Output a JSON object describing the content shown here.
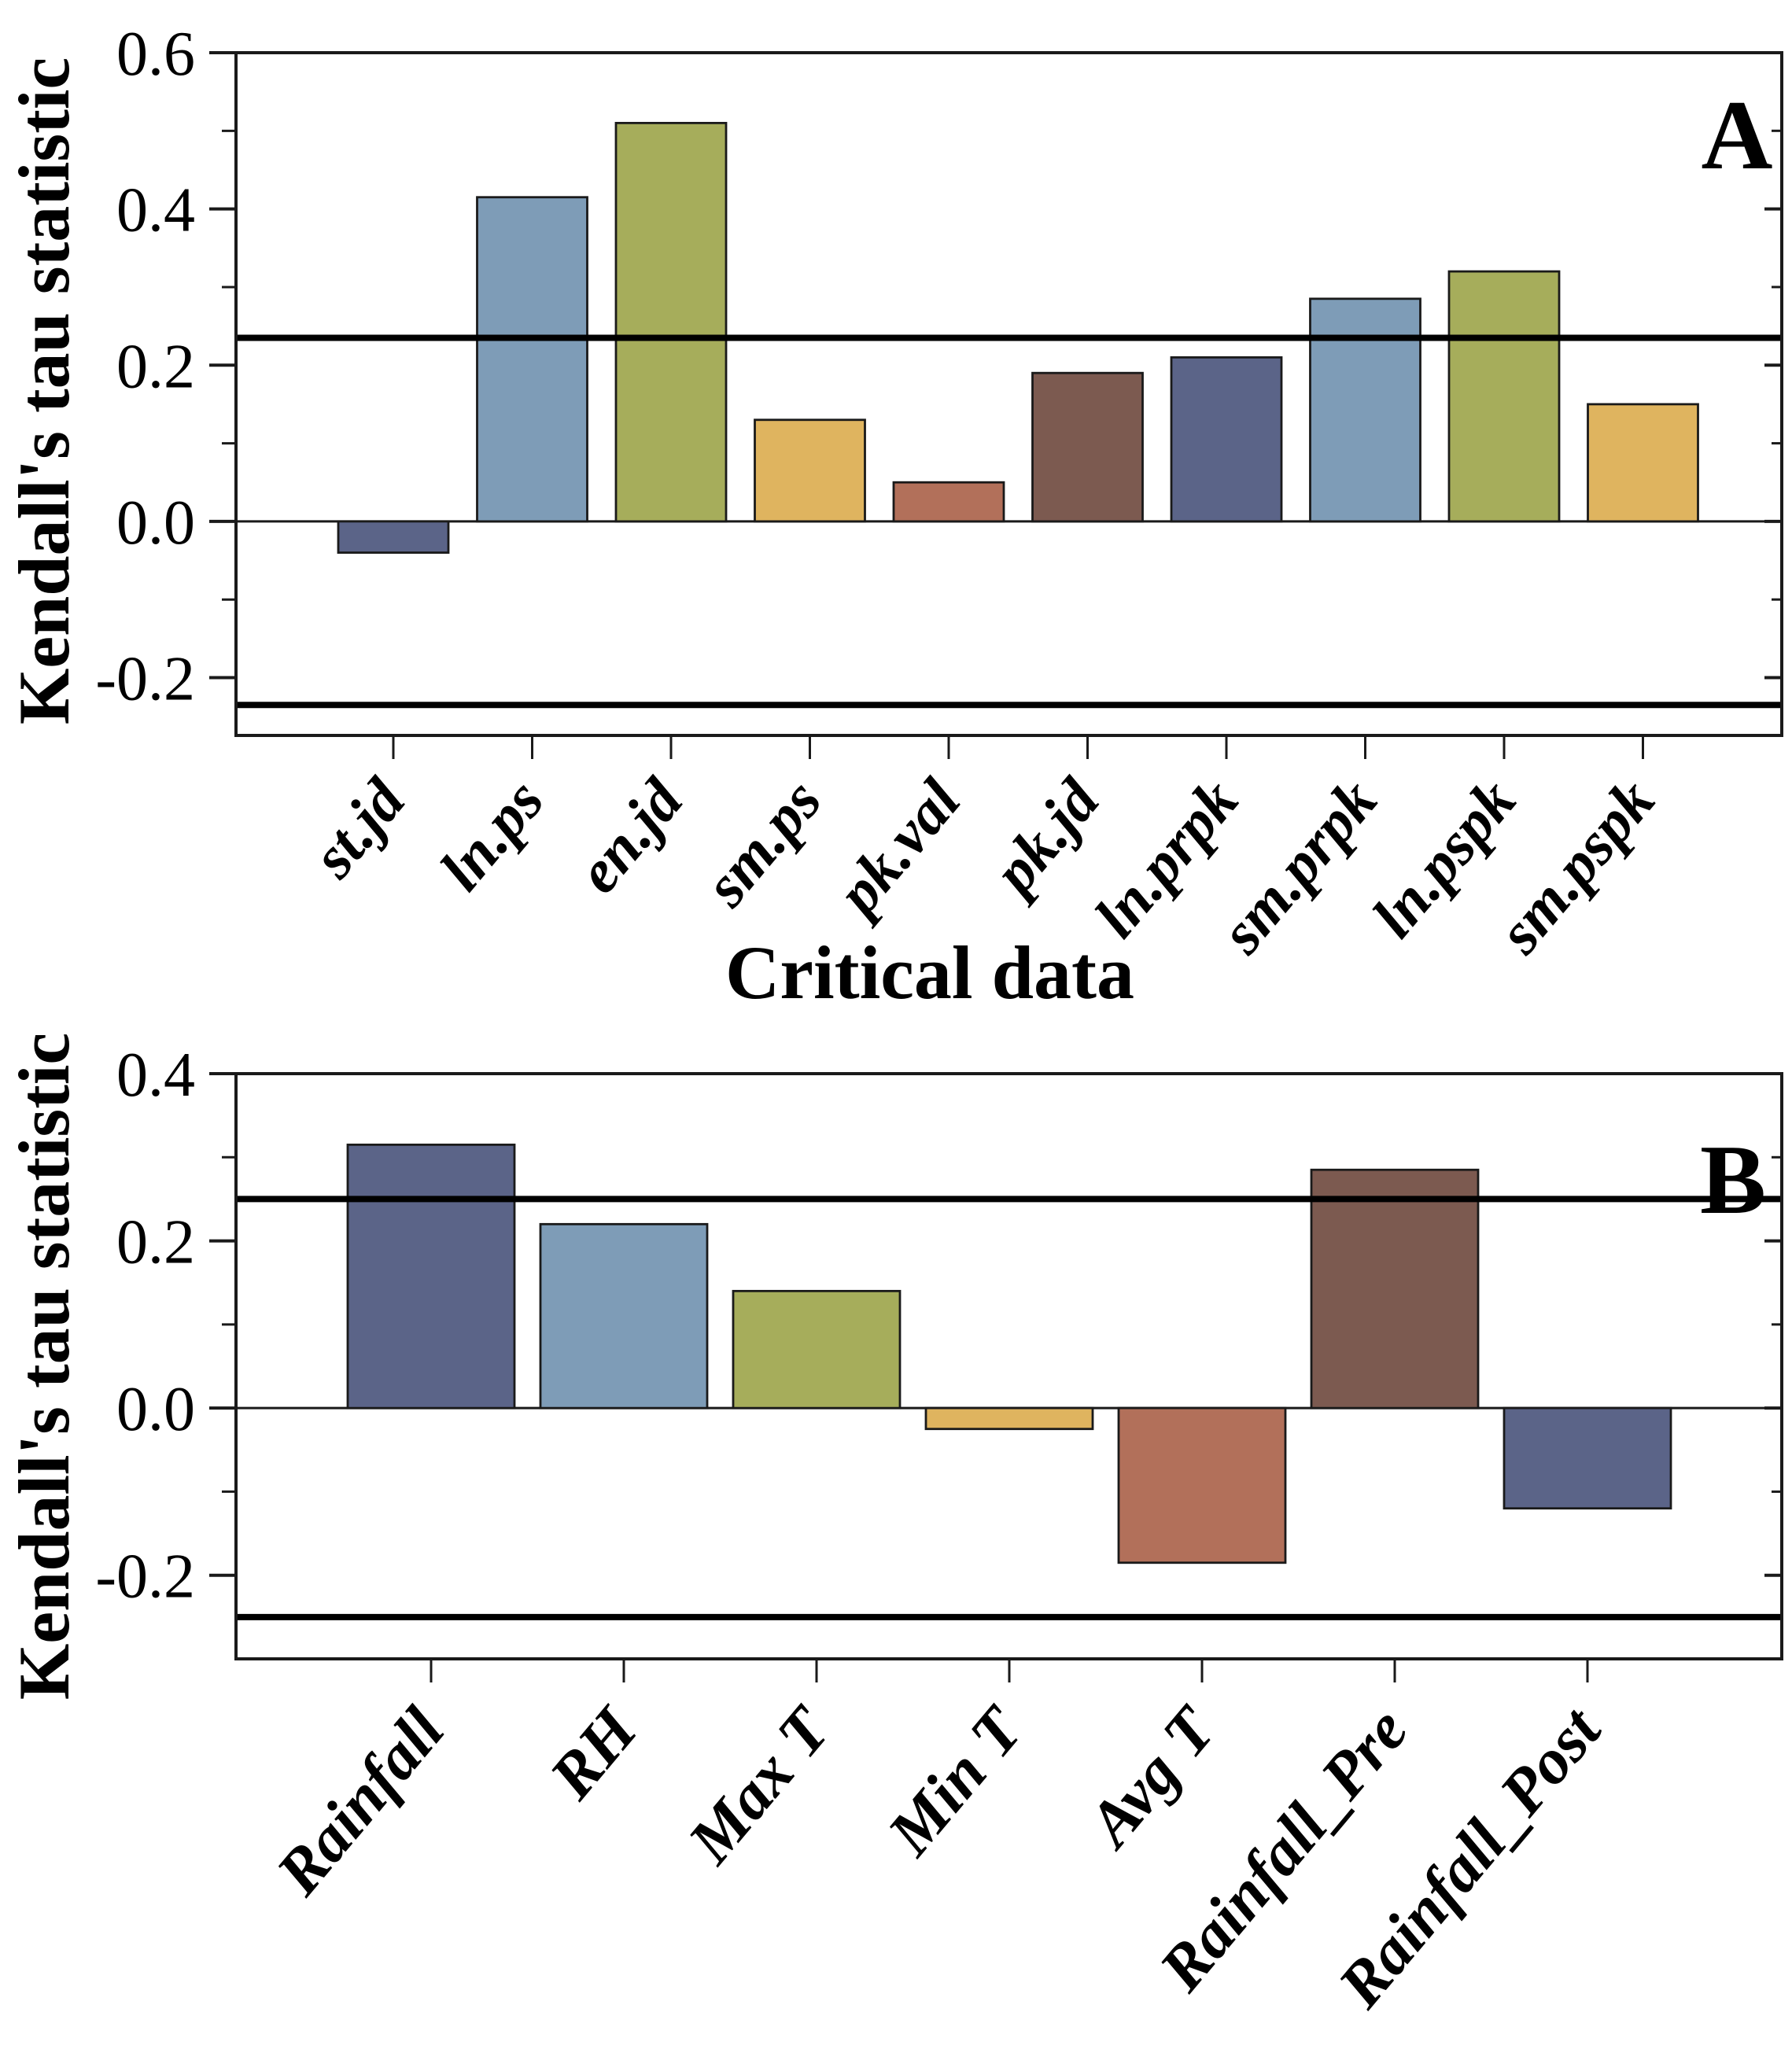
{
  "figure": {
    "background": "#ffffff",
    "title": "",
    "panel_a_letter": "A",
    "panel_b_letter": "B",
    "y_axis_title": "Kendall's tau statistic",
    "x_axis_title_a": "Critical data"
  },
  "colors": {
    "slate": "#5b6488",
    "lightblue": "#7e9cb7",
    "olive": "#a6ad5b",
    "gold": "#dfb45f",
    "salmon": "#b2705a",
    "brown": "#7c5a50",
    "axis": "#1a1a1a",
    "ref_line": "#000000",
    "text": "#000000"
  },
  "chart_data": [
    {
      "type": "bar",
      "panel": "A",
      "title": "",
      "ylabel": "Kendall's tau statistic",
      "xlabel": "Critical data",
      "categories": [
        "st.jd",
        "ln.ps",
        "en.jd",
        "sm.ps",
        "pk.val",
        "pk.jd",
        "ln.prpk",
        "sm.prpk",
        "ln.pspk",
        "sm.pspk"
      ],
      "values": [
        -0.04,
        0.415,
        0.51,
        0.13,
        0.05,
        0.19,
        0.21,
        0.285,
        0.32,
        0.15
      ],
      "bar_colors": [
        "slate",
        "lightblue",
        "olive",
        "gold",
        "salmon",
        "brown",
        "slate",
        "lightblue",
        "olive",
        "gold"
      ],
      "ylim": [
        -0.274,
        0.6
      ],
      "ytick_values": [
        0.6,
        0.4,
        0.2,
        0.0,
        -0.2
      ],
      "ytick_labels": [
        "0.6",
        "0.4",
        "0.2",
        "0.0",
        "-0.2"
      ],
      "minor_ticks": [
        0.5,
        0.3,
        0.1,
        -0.1
      ],
      "ref_lines": [
        0.235,
        -0.235
      ],
      "grid": false,
      "legend": "none"
    },
    {
      "type": "bar",
      "panel": "B",
      "title": "",
      "ylabel": "Kendall's tau statistic",
      "xlabel": "",
      "categories": [
        "Rainfall",
        "RH",
        "Max T",
        "Min T",
        "Avg T",
        "Rainfall_Pre",
        "Rainfall_Post"
      ],
      "values": [
        0.315,
        0.22,
        0.14,
        -0.025,
        -0.185,
        0.285,
        -0.12
      ],
      "bar_colors": [
        "slate",
        "lightblue",
        "olive",
        "gold",
        "salmon",
        "brown",
        "slate"
      ],
      "ylim": [
        -0.3,
        0.4
      ],
      "ytick_values": [
        0.4,
        0.2,
        0.0,
        -0.2
      ],
      "ytick_labels": [
        "0.4",
        "0.2",
        "0.0",
        "-0.2"
      ],
      "minor_ticks": [
        0.3,
        0.1,
        -0.1
      ],
      "ref_lines": [
        0.25,
        -0.25
      ],
      "grid": false,
      "legend": "none"
    }
  ]
}
